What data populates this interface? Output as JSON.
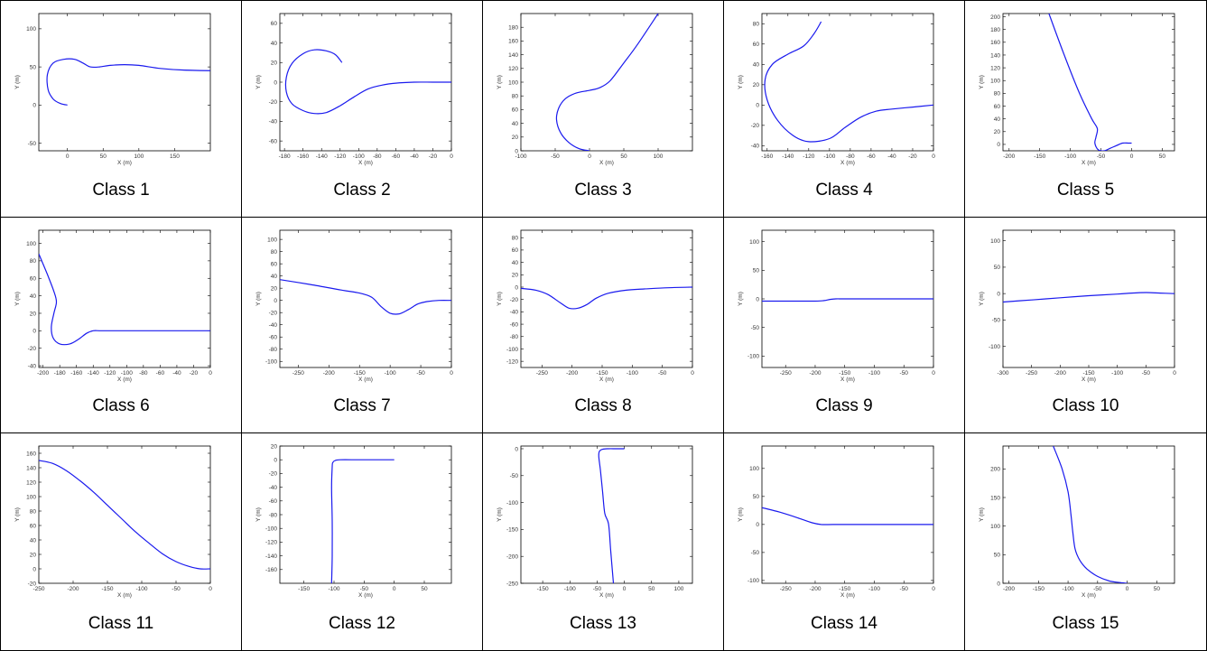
{
  "colors": {
    "line": "#1a1aee",
    "frame": "#000000"
  },
  "chart_data": [
    {
      "type": "line",
      "caption": "Class 1",
      "xlabel": "X (m)",
      "ylabel": "Y (m)",
      "xlim": [
        -40,
        200
      ],
      "ylim": [
        -60,
        120
      ],
      "xticks": [
        0,
        50,
        100,
        150
      ],
      "yticks": [
        -50,
        0,
        50,
        100
      ],
      "x": [
        0,
        -10,
        -20,
        -27,
        -28,
        -20,
        -5,
        10,
        22,
        32,
        45,
        60,
        80,
        100,
        130,
        160,
        200
      ],
      "y": [
        0,
        2,
        8,
        20,
        40,
        55,
        60,
        60,
        55,
        50,
        50,
        52,
        53,
        52,
        48,
        46,
        45
      ]
    },
    {
      "type": "line",
      "caption": "Class 2",
      "xlabel": "X (m)",
      "ylabel": "Y (m)",
      "xlim": [
        -185,
        0
      ],
      "ylim": [
        -70,
        70
      ],
      "xticks": [
        -180,
        -160,
        -140,
        -120,
        -100,
        -80,
        -60,
        -40,
        -20,
        0
      ],
      "yticks": [
        -60,
        -40,
        -20,
        0,
        20,
        40,
        60
      ],
      "x": [
        -118,
        -125,
        -135,
        -148,
        -160,
        -172,
        -178,
        -178,
        -172,
        -160,
        -148,
        -135,
        -120,
        -105,
        -90,
        -75,
        -60,
        -40,
        -20,
        0
      ],
      "y": [
        20,
        28,
        32,
        33,
        29,
        19,
        5,
        -10,
        -22,
        -29,
        -32,
        -31,
        -24,
        -15,
        -7,
        -3,
        -1,
        0,
        0,
        0
      ]
    },
    {
      "type": "line",
      "caption": "Class 3",
      "xlabel": "X (m)",
      "ylabel": "Y (m)",
      "xlim": [
        -100,
        150
      ],
      "ylim": [
        0,
        200
      ],
      "xticks": [
        -100,
        -50,
        0,
        50,
        100
      ],
      "yticks": [
        0,
        20,
        40,
        60,
        80,
        100,
        120,
        140,
        160,
        180
      ],
      "x": [
        0,
        -15,
        -30,
        -42,
        -48,
        -45,
        -35,
        -20,
        0,
        15,
        30,
        50,
        70,
        100
      ],
      "y": [
        0,
        3,
        12,
        26,
        45,
        62,
        76,
        84,
        88,
        92,
        102,
        128,
        155,
        200
      ]
    },
    {
      "type": "line",
      "caption": "Class 4",
      "xlabel": "X (m)",
      "ylabel": "Y (m)",
      "xlim": [
        -165,
        0
      ],
      "ylim": [
        -45,
        90
      ],
      "xticks": [
        -160,
        -140,
        -120,
        -100,
        -80,
        -60,
        -40,
        -20,
        0
      ],
      "yticks": [
        -40,
        -20,
        0,
        20,
        40,
        60,
        80
      ],
      "x": [
        -108,
        -115,
        -125,
        -140,
        -155,
        -162,
        -160,
        -150,
        -135,
        -120,
        -100,
        -85,
        -70,
        -55,
        -40,
        -20,
        0
      ],
      "y": [
        82,
        70,
        58,
        50,
        40,
        25,
        5,
        -15,
        -30,
        -36,
        -33,
        -22,
        -12,
        -6,
        -4,
        -2,
        0
      ]
    },
    {
      "type": "line",
      "caption": "Class 5",
      "xlabel": "X (m)",
      "ylabel": "Y (m)",
      "xlim": [
        -210,
        70
      ],
      "ylim": [
        -10,
        205
      ],
      "xticks": [
        -200,
        -150,
        -100,
        -50,
        0,
        50
      ],
      "yticks": [
        0,
        20,
        40,
        60,
        80,
        100,
        120,
        140,
        160,
        180,
        200
      ],
      "x": [
        -135,
        -110,
        -85,
        -65,
        -56,
        -58,
        -60,
        -55,
        -45,
        -35,
        -25,
        -15,
        -5,
        0
      ],
      "y": [
        205,
        140,
        80,
        40,
        25,
        12,
        2,
        -8,
        -10,
        -6,
        -2,
        2,
        2,
        2
      ]
    },
    {
      "type": "line",
      "caption": "Class 6",
      "xlabel": "X (m)",
      "ylabel": "Y (m)",
      "xlim": [
        -205,
        0
      ],
      "ylim": [
        -42,
        115
      ],
      "xticks": [
        -200,
        -180,
        -160,
        -140,
        -120,
        -100,
        -80,
        -60,
        -40,
        -20,
        0
      ],
      "yticks": [
        -40,
        -20,
        0,
        20,
        40,
        60,
        80,
        100
      ],
      "x": [
        -205,
        -195,
        -187,
        -184,
        -187,
        -190,
        -188,
        -180,
        -168,
        -158,
        -148,
        -140,
        -130,
        -100,
        -60,
        -20,
        0
      ],
      "y": [
        88,
        65,
        45,
        33,
        20,
        5,
        -8,
        -15,
        -15,
        -10,
        -3,
        0,
        0,
        0,
        0,
        0,
        0
      ]
    },
    {
      "type": "line",
      "caption": "Class 7",
      "xlabel": "X (m)",
      "ylabel": "Y (m)",
      "xlim": [
        -280,
        0
      ],
      "ylim": [
        -110,
        115
      ],
      "xticks": [
        -250,
        -200,
        -150,
        -100,
        -50,
        0
      ],
      "yticks": [
        -100,
        -80,
        -60,
        -40,
        -20,
        0,
        20,
        40,
        60,
        80,
        100
      ],
      "x": [
        -280,
        -230,
        -180,
        -150,
        -130,
        -115,
        -100,
        -85,
        -70,
        -55,
        -40,
        -20,
        0
      ],
      "y": [
        34,
        26,
        17,
        12,
        5,
        -10,
        -21,
        -22,
        -15,
        -6,
        -2,
        0,
        0
      ]
    },
    {
      "type": "line",
      "caption": "Class 8",
      "xlabel": "X (m)",
      "ylabel": "Y (m)",
      "xlim": [
        -285,
        0
      ],
      "ylim": [
        -130,
        92
      ],
      "xticks": [
        -250,
        -200,
        -150,
        -100,
        -50,
        0
      ],
      "yticks": [
        -120,
        -100,
        -80,
        -60,
        -40,
        -20,
        0,
        20,
        40,
        60,
        80
      ],
      "x": [
        -285,
        -260,
        -240,
        -220,
        -205,
        -190,
        -175,
        -160,
        -140,
        -110,
        -80,
        -40,
        0
      ],
      "y": [
        -2,
        -5,
        -12,
        -25,
        -34,
        -34,
        -28,
        -18,
        -10,
        -5,
        -3,
        -1,
        0
      ]
    },
    {
      "type": "line",
      "caption": "Class 9",
      "xlabel": "X (m)",
      "ylabel": "Y (m)",
      "xlim": [
        -290,
        0
      ],
      "ylim": [
        -120,
        120
      ],
      "xticks": [
        -250,
        -200,
        -150,
        -100,
        -50,
        0
      ],
      "yticks": [
        -100,
        -50,
        0,
        50,
        100
      ],
      "x": [
        -290,
        -250,
        -200,
        -185,
        -175,
        -165,
        -150,
        -100,
        -50,
        0
      ],
      "y": [
        -4,
        -4,
        -4,
        -3,
        -1,
        0,
        0,
        0,
        0,
        0
      ]
    },
    {
      "type": "line",
      "caption": "Class 10",
      "xlabel": "X (m)",
      "ylabel": "Y (m)",
      "xlim": [
        -300,
        0
      ],
      "ylim": [
        -140,
        120
      ],
      "xticks": [
        -300,
        -250,
        -200,
        -150,
        -100,
        -50,
        0
      ],
      "yticks": [
        -100,
        -50,
        0,
        50,
        100
      ],
      "x": [
        -300,
        -250,
        -200,
        -150,
        -100,
        -75,
        -50,
        -25,
        0
      ],
      "y": [
        -16,
        -12,
        -8,
        -4,
        -1,
        1,
        2,
        1,
        0
      ]
    },
    {
      "type": "line",
      "caption": "Class 11",
      "xlabel": "X (m)",
      "ylabel": "Y (m)",
      "xlim": [
        -250,
        0
      ],
      "ylim": [
        -20,
        170
      ],
      "xticks": [
        -250,
        -200,
        -150,
        -100,
        -50,
        0
      ],
      "yticks": [
        -20,
        0,
        20,
        40,
        60,
        80,
        100,
        120,
        140,
        160
      ],
      "x": [
        -250,
        -230,
        -210,
        -190,
        -170,
        -150,
        -130,
        -110,
        -90,
        -70,
        -50,
        -30,
        -15,
        0
      ],
      "y": [
        150,
        146,
        136,
        122,
        106,
        88,
        70,
        52,
        36,
        21,
        10,
        3,
        0,
        0
      ]
    },
    {
      "type": "line",
      "caption": "Class 12",
      "xlabel": "X (m)",
      "ylabel": "Y (m)",
      "xlim": [
        -190,
        95
      ],
      "ylim": [
        -180,
        20
      ],
      "xticks": [
        -150,
        -100,
        -50,
        0,
        50
      ],
      "yticks": [
        -160,
        -140,
        -120,
        -100,
        -80,
        -60,
        -40,
        -20,
        0,
        20
      ],
      "x": [
        -104,
        -103,
        -103,
        -104,
        -103,
        -102,
        -98,
        -90,
        -60,
        -30,
        0
      ],
      "y": [
        -180,
        -140,
        -90,
        -40,
        -10,
        -4,
        -1,
        0,
        0,
        0,
        0
      ]
    },
    {
      "type": "line",
      "caption": "Class 13",
      "xlabel": "X (m)",
      "ylabel": "Y (m)",
      "xlim": [
        -190,
        125
      ],
      "ylim": [
        -250,
        5
      ],
      "xticks": [
        -150,
        -100,
        -50,
        0,
        50,
        100
      ],
      "yticks": [
        -250,
        -200,
        -150,
        -100,
        -50,
        0
      ],
      "x": [
        -20,
        -25,
        -29,
        -36,
        -40,
        -44,
        -47,
        -46,
        -40,
        -30,
        -15,
        0
      ],
      "y": [
        -250,
        -190,
        -140,
        -120,
        -80,
        -40,
        -15,
        -5,
        -1,
        0,
        0,
        0
      ]
    },
    {
      "type": "line",
      "caption": "Class 14",
      "xlabel": "X (m)",
      "ylabel": "Y (m)",
      "xlim": [
        -290,
        0
      ],
      "ylim": [
        -105,
        140
      ],
      "xticks": [
        -250,
        -200,
        -150,
        -100,
        -50,
        0
      ],
      "yticks": [
        -100,
        -50,
        0,
        50,
        100
      ],
      "x": [
        -290,
        -260,
        -230,
        -205,
        -190,
        -170,
        -140,
        -100,
        -50,
        0
      ],
      "y": [
        30,
        22,
        12,
        3,
        0,
        0,
        0,
        0,
        0,
        0
      ]
    },
    {
      "type": "line",
      "caption": "Class 15",
      "xlabel": "X (m)",
      "ylabel": "Y (m)",
      "xlim": [
        -210,
        80
      ],
      "ylim": [
        0,
        240
      ],
      "xticks": [
        -200,
        -150,
        -100,
        -50,
        0,
        50
      ],
      "yticks": [
        0,
        50,
        100,
        150,
        200
      ],
      "x": [
        -125,
        -110,
        -100,
        -95,
        -92,
        -88,
        -80,
        -68,
        -50,
        -30,
        -10,
        0
      ],
      "y": [
        240,
        200,
        160,
        120,
        90,
        60,
        40,
        25,
        12,
        4,
        1,
        0
      ]
    }
  ]
}
